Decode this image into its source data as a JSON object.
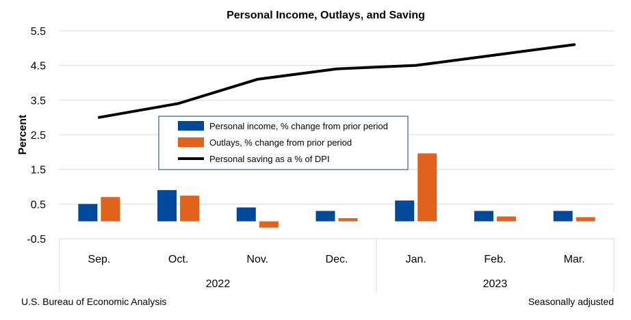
{
  "chart_data": {
    "type": "bar",
    "title": "Personal Income, Outlays, and Saving",
    "ylabel": "Percent",
    "xlabel": "",
    "ylim": [
      -0.5,
      5.5
    ],
    "yticks": [
      -0.5,
      0.5,
      1.5,
      2.5,
      3.5,
      4.5,
      5.5
    ],
    "ytick_labels": [
      "-0.5",
      "0.5",
      "1.5",
      "2.5",
      "3.5",
      "4.5",
      "5.5"
    ],
    "grid": true,
    "categories": [
      "Sep.",
      "Oct.",
      "Nov.",
      "Dec.",
      "Jan.",
      "Feb.",
      "Mar."
    ],
    "year_groups": [
      {
        "label": "2022",
        "count": 4
      },
      {
        "label": "2023",
        "count": 3
      }
    ],
    "series": [
      {
        "name": "Personal income, % change from prior period",
        "type": "bar",
        "color": "#00489a",
        "values": [
          0.5,
          0.9,
          0.4,
          0.3,
          0.6,
          0.3,
          0.3
        ]
      },
      {
        "name": "Outlays, % change from prior period",
        "type": "bar",
        "color": "#e0621c",
        "values": [
          0.7,
          0.74,
          -0.18,
          0.09,
          1.96,
          0.14,
          0.12
        ]
      },
      {
        "name": "Personal saving as a % of DPI",
        "type": "line",
        "color": "#000000",
        "values": [
          3.0,
          3.4,
          4.1,
          4.4,
          4.5,
          4.8,
          5.1
        ]
      }
    ],
    "legend_position": "center-left",
    "source": "U.S. Bureau of Economic Analysis",
    "note": "Seasonally adjusted"
  }
}
